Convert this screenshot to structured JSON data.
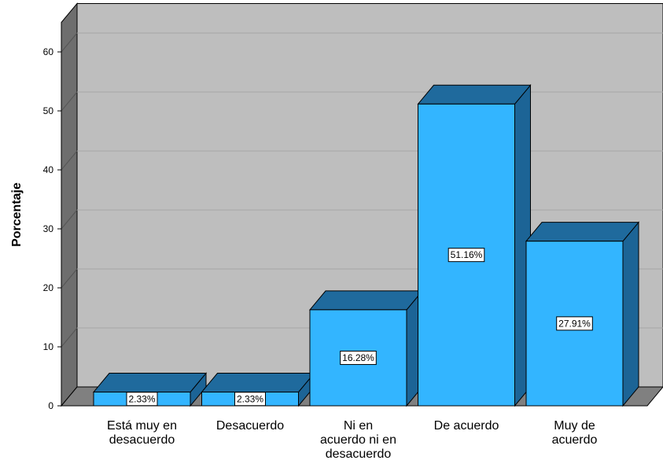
{
  "chart_data": {
    "type": "bar",
    "categories": [
      [
        "Está muy en",
        "desacuerdo"
      ],
      [
        "Desacuerdo"
      ],
      [
        "Ni en",
        "acuerdo ni en",
        "desacuerdo"
      ],
      [
        "De acuerdo"
      ],
      [
        "Muy de",
        "acuerdo"
      ]
    ],
    "values": [
      2.33,
      2.33,
      16.28,
      51.16,
      27.91
    ],
    "data_labels": [
      "2.33%",
      "2.33%",
      "16.28%",
      "51.16%",
      "27.91%"
    ],
    "title": "",
    "xlabel": "",
    "ylabel": "Porcentaje",
    "ylim": [
      0,
      65
    ],
    "yticks": [
      0,
      10,
      20,
      30,
      40,
      50,
      60
    ],
    "grid": true,
    "style": "3d",
    "colors": {
      "bar_front": "#33B5FF",
      "bar_top": "#1F6A9D",
      "bar_side": "#1C6496",
      "back_wall": "#BEBEBE",
      "left_wall": "#6E6E6E",
      "floor": "#808080",
      "gridline": "#A7A7A7"
    }
  }
}
